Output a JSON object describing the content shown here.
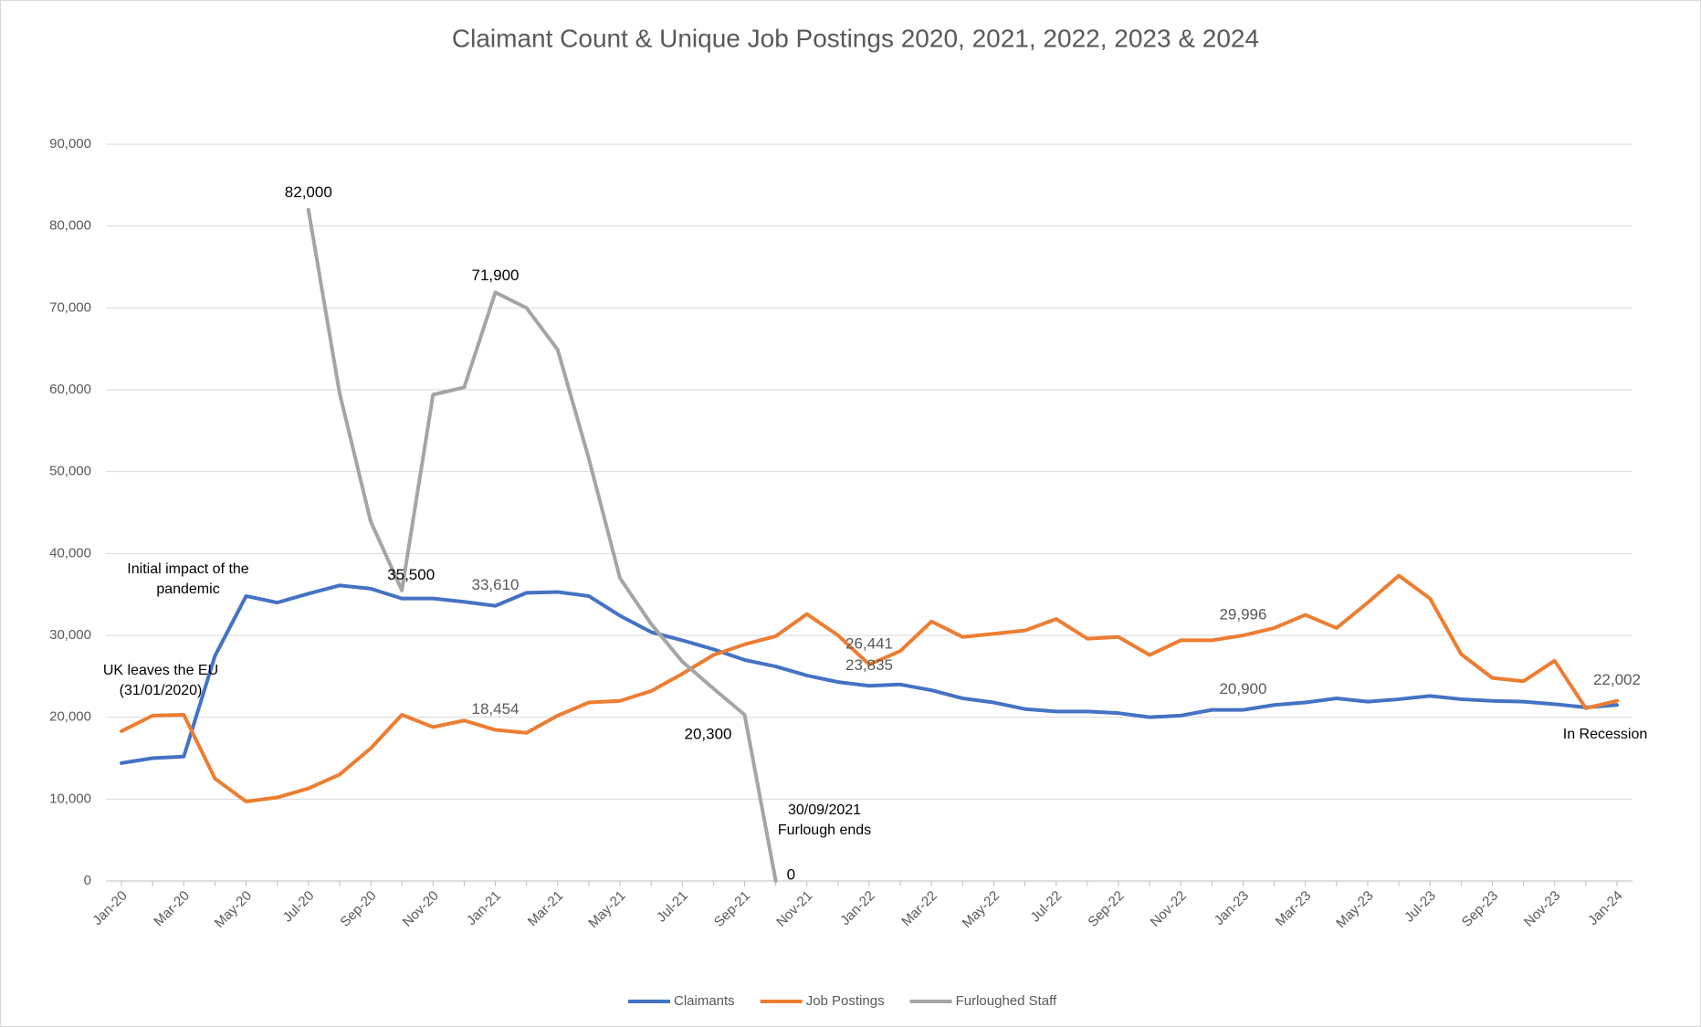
{
  "chart_data": {
    "type": "line",
    "title": "Claimant Count & Unique Job Postings 2020, 2021, 2022, 2023 & 2024",
    "categories": [
      "Jan-20",
      null,
      "Mar-20",
      null,
      "May-20",
      null,
      "Jul-20",
      null,
      "Sep-20",
      null,
      "Nov-20",
      null,
      "Jan-21",
      null,
      "Mar-21",
      null,
      "May-21",
      null,
      "Jul-21",
      null,
      "Sep-21",
      null,
      "Nov-21",
      null,
      "Jan-22",
      null,
      "Mar-22",
      null,
      "May-22",
      null,
      "Jul-22",
      null,
      "Sep-22",
      null,
      "Nov-22",
      null,
      "Jan-23",
      null,
      "Mar-23",
      null,
      "May-23",
      null,
      "Jul-23",
      null,
      "Sep-23",
      null,
      "Nov-23",
      null,
      "Jan-24"
    ],
    "ylim": [
      0,
      90000
    ],
    "yticks": [
      {
        "value": 0,
        "label": "0"
      },
      {
        "value": 10000,
        "label": "10,000"
      },
      {
        "value": 20000,
        "label": "20,000"
      },
      {
        "value": 30000,
        "label": "30,000"
      },
      {
        "value": 40000,
        "label": "40,000"
      },
      {
        "value": 50000,
        "label": "50,000"
      },
      {
        "value": 60000,
        "label": "60,000"
      },
      {
        "value": 70000,
        "label": "70,000"
      },
      {
        "value": 80000,
        "label": "80,000"
      },
      {
        "value": 90000,
        "label": "90,000"
      }
    ],
    "grid": true,
    "legend": "bottom",
    "series": [
      {
        "name": "Claimants",
        "color": "#4472c4",
        "values": [
          14400,
          15000,
          15200,
          27500,
          34800,
          34000,
          35100,
          36100,
          35700,
          34500,
          34500,
          34100,
          33610,
          35200,
          35300,
          34800,
          32400,
          30400,
          29400,
          28300,
          27000,
          26200,
          25100,
          24300,
          23835,
          24000,
          23300,
          22300,
          21800,
          21000,
          20700,
          20700,
          20500,
          20000,
          20200,
          20900,
          20900,
          21500,
          21800,
          22300,
          21900,
          22200,
          22600,
          22200,
          22000,
          21900,
          21600,
          21200,
          21500
        ],
        "value_labels": [
          null,
          null,
          null,
          null,
          null,
          null,
          null,
          null,
          null,
          null,
          null,
          null,
          "33,610",
          null,
          null,
          null,
          null,
          null,
          null,
          null,
          null,
          null,
          null,
          null,
          "23,835",
          null,
          null,
          null,
          null,
          null,
          null,
          null,
          null,
          null,
          null,
          null,
          "20,900",
          null,
          null,
          null,
          null,
          null,
          null,
          null,
          null,
          null,
          null,
          null,
          null
        ]
      },
      {
        "name": "Job Postings",
        "color": "#ed7d31",
        "values": [
          18300,
          20200,
          20300,
          12500,
          9700,
          10200,
          11300,
          13000,
          16200,
          20300,
          18800,
          19600,
          18454,
          18100,
          20200,
          21800,
          22000,
          23200,
          25300,
          27600,
          28900,
          29900,
          32600,
          30000,
          26441,
          28100,
          31700,
          29800,
          30200,
          30600,
          32000,
          29600,
          29800,
          27600,
          29400,
          29400,
          29996,
          30900,
          32500,
          30900,
          34000,
          37300,
          34500,
          27700,
          24800,
          24400,
          26900,
          21100,
          22002
        ],
        "value_labels": [
          null,
          null,
          null,
          null,
          null,
          null,
          null,
          null,
          null,
          null,
          null,
          null,
          "18,454",
          null,
          null,
          null,
          null,
          null,
          null,
          null,
          null,
          null,
          null,
          null,
          "26,441",
          null,
          null,
          null,
          null,
          null,
          null,
          null,
          null,
          null,
          null,
          null,
          "29,996",
          null,
          null,
          null,
          null,
          null,
          null,
          null,
          null,
          null,
          null,
          null,
          "22,002"
        ]
      },
      {
        "name": "Furloughed Staff",
        "color": "#a5a5a5",
        "values": [
          null,
          null,
          null,
          null,
          null,
          null,
          82000,
          59600,
          43900,
          35500,
          59400,
          60300,
          71900,
          70000,
          64900,
          51600,
          37000,
          31400,
          26800,
          23500,
          20300,
          0,
          null,
          null,
          null,
          null,
          null,
          null,
          null,
          null,
          null,
          null,
          null,
          null,
          null,
          null,
          null,
          null,
          null,
          null,
          null,
          null,
          null,
          null,
          null,
          null,
          null,
          null,
          null
        ],
        "value_labels": [
          null,
          null,
          null,
          null,
          null,
          null,
          "82,000",
          null,
          null,
          "35,500",
          null,
          null,
          "71,900",
          null,
          null,
          null,
          null,
          null,
          null,
          null,
          "20,300",
          "0",
          null,
          null,
          null,
          null,
          null,
          null,
          null,
          null,
          null,
          null,
          null,
          null,
          null,
          null,
          null,
          null,
          null,
          null,
          null,
          null,
          null,
          null,
          null,
          null,
          null,
          null,
          null
        ]
      }
    ],
    "annotations": [
      {
        "lines": [
          "Initial impact of the",
          "pandemic"
        ]
      },
      {
        "lines": [
          "UK leaves the EU",
          "(31/01/2020)"
        ]
      },
      {
        "lines": [
          "30/09/2021",
          "Furlough ends"
        ]
      },
      {
        "lines": [
          "In Recession"
        ],
        "color": "#e00000"
      }
    ]
  }
}
